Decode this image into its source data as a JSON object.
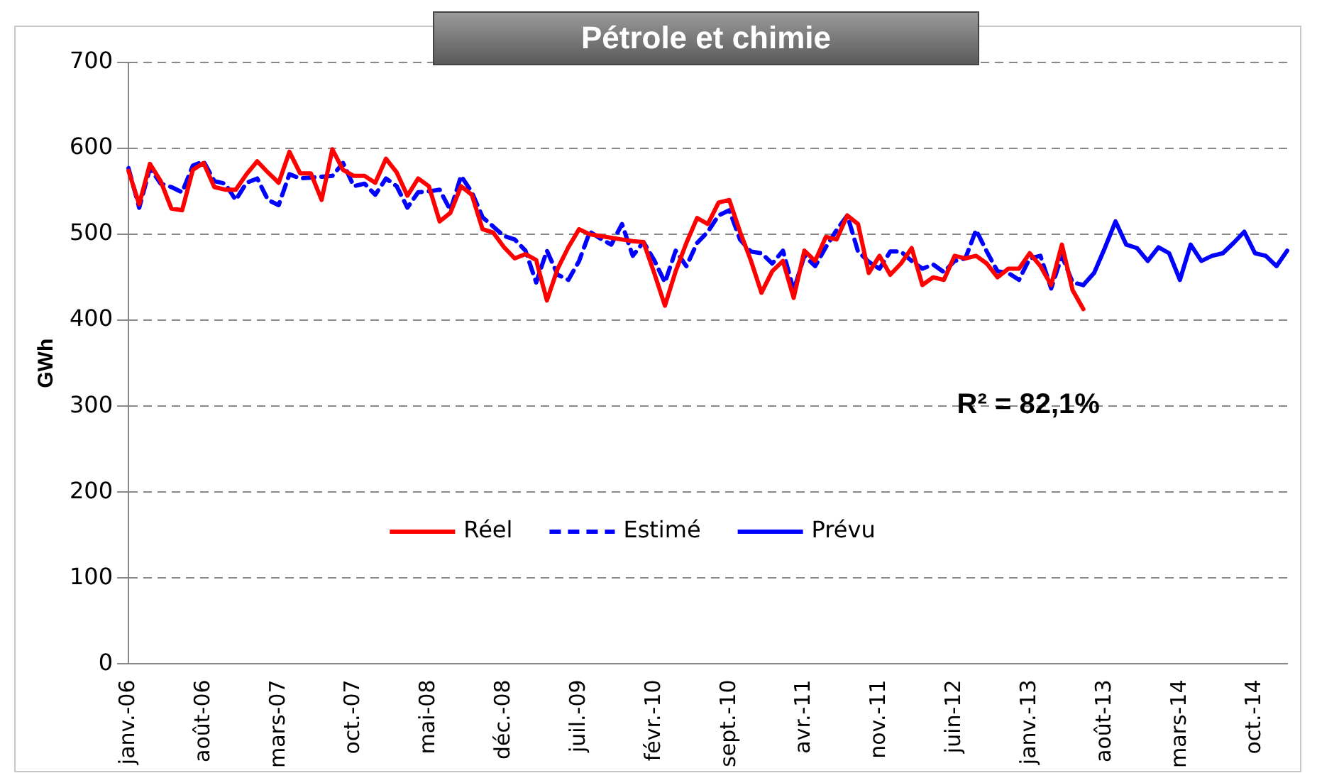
{
  "chart_data": {
    "type": "line",
    "title": "Pétrole et chimie",
    "ylabel": "GWh",
    "categories": [
      "janv.-06",
      null,
      null,
      null,
      null,
      null,
      null,
      "août-06",
      null,
      null,
      null,
      null,
      null,
      null,
      "mars-07",
      null,
      null,
      null,
      null,
      null,
      null,
      "oct.-07",
      null,
      null,
      null,
      null,
      null,
      null,
      "mai-08",
      null,
      null,
      null,
      null,
      null,
      null,
      "déc.-08",
      null,
      null,
      null,
      null,
      null,
      null,
      "juil.-09",
      null,
      null,
      null,
      null,
      null,
      null,
      "févr.-10",
      null,
      null,
      null,
      null,
      null,
      null,
      "sept.-10",
      null,
      null,
      null,
      null,
      null,
      null,
      "avr.-11",
      null,
      null,
      null,
      null,
      null,
      null,
      "nov.-11",
      null,
      null,
      null,
      null,
      null,
      null,
      "juin-12",
      null,
      null,
      null,
      null,
      null,
      null,
      "janv.-13",
      null,
      null,
      null,
      null,
      null,
      null,
      "août-13",
      null,
      null,
      null,
      null,
      null,
      null,
      "mars-14",
      null,
      null,
      null,
      null,
      null,
      null,
      "oct.-14",
      null,
      null,
      null
    ],
    "series": [
      {
        "name": "Réel",
        "color": "#ff0000",
        "line_style": "solid",
        "values": [
          574,
          535,
          582,
          562,
          530,
          528,
          575,
          583,
          555,
          552,
          552,
          570,
          585,
          572,
          560,
          596,
          571,
          571,
          540,
          599,
          575,
          568,
          568,
          560,
          588,
          572,
          545,
          565,
          556,
          515,
          525,
          556,
          546,
          506,
          502,
          485,
          472,
          477,
          470,
          423,
          460,
          485,
          506,
          500,
          498,
          496,
          494,
          492,
          491,
          455,
          417,
          457,
          490,
          519,
          512,
          537,
          540,
          503,
          470,
          432,
          457,
          469,
          426,
          481,
          469,
          497,
          494,
          522,
          512,
          455,
          475,
          453,
          466,
          484,
          441,
          450,
          447,
          475,
          472,
          475,
          466,
          450,
          460,
          460,
          478,
          463,
          441,
          488,
          435,
          413,
          null,
          null,
          null,
          null,
          null,
          null,
          null,
          null,
          null,
          null,
          null,
          null,
          null,
          null,
          null,
          null,
          null,
          null,
          null
        ]
      },
      {
        "name": "Estimé",
        "color": "#0000ff",
        "line_style": "dashed",
        "values": [
          577,
          531,
          577,
          559,
          555,
          549,
          580,
          585,
          562,
          559,
          540,
          560,
          565,
          540,
          534,
          570,
          565,
          566,
          567,
          568,
          583,
          556,
          559,
          546,
          565,
          556,
          531,
          549,
          550,
          552,
          528,
          568,
          549,
          520,
          509,
          498,
          494,
          481,
          444,
          481,
          453,
          447,
          469,
          503,
          495,
          488,
          512,
          475,
          491,
          470,
          444,
          481,
          463,
          490,
          503,
          522,
          528,
          494,
          480,
          478,
          466,
          481,
          435,
          475,
          463,
          485,
          505,
          522,
          480,
          468,
          460,
          480,
          480,
          469,
          460,
          465,
          456,
          469,
          472,
          505,
          480,
          457,
          455,
          447,
          472,
          475,
          437,
          475,
          444,
          441,
          null,
          null,
          null,
          null,
          null,
          null,
          null,
          null,
          null,
          null,
          null,
          null,
          null,
          null,
          null,
          null,
          null,
          null,
          null
        ]
      },
      {
        "name": "Prévu",
        "color": "#0000ff",
        "line_style": "solid",
        "values": [
          null,
          null,
          null,
          null,
          null,
          null,
          null,
          null,
          null,
          null,
          null,
          null,
          null,
          null,
          null,
          null,
          null,
          null,
          null,
          null,
          null,
          null,
          null,
          null,
          null,
          null,
          null,
          null,
          null,
          null,
          null,
          null,
          null,
          null,
          null,
          null,
          null,
          null,
          null,
          null,
          null,
          null,
          null,
          null,
          null,
          null,
          null,
          null,
          null,
          null,
          null,
          null,
          null,
          null,
          null,
          null,
          null,
          null,
          null,
          null,
          null,
          null,
          null,
          null,
          null,
          null,
          null,
          null,
          null,
          null,
          null,
          null,
          null,
          null,
          null,
          null,
          null,
          null,
          null,
          null,
          null,
          null,
          null,
          null,
          null,
          null,
          null,
          null,
          null,
          441,
          455,
          484,
          515,
          488,
          484,
          469,
          485,
          478,
          447,
          488,
          469,
          475,
          478,
          490,
          503,
          478,
          475,
          463,
          481
        ]
      }
    ],
    "ylim": [
      0,
      700
    ],
    "yticks": [
      0,
      100,
      200,
      300,
      400,
      500,
      600,
      700
    ],
    "grid": "y",
    "legend": "center",
    "marker": "none",
    "annotations": [
      "R² = 82,1%"
    ]
  }
}
